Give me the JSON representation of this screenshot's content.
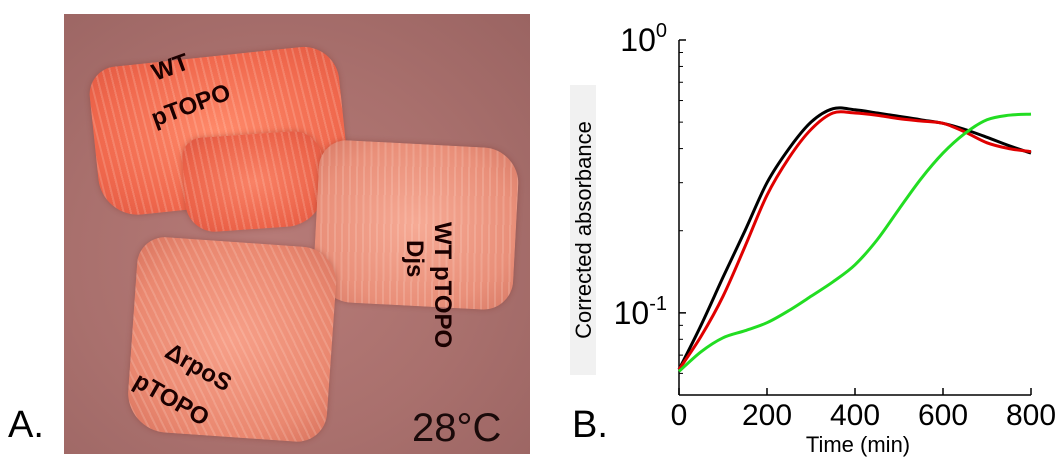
{
  "panel_labels": {
    "a": "A.",
    "b": "B."
  },
  "plate": {
    "labels": {
      "wt_line1": "WT",
      "wt_line2": "pTOPO",
      "djs_line1": "WT pTOPO",
      "djs_line2": "Djs",
      "rpos_line1": "ΔrpoS",
      "rpos_line2": "pTOPO"
    },
    "temperature": "28°C"
  },
  "chart_data": {
    "type": "line",
    "xlabel": "Time (min)",
    "ylabel": "Corrected absorbance",
    "xlim": [
      0,
      800
    ],
    "ylim": [
      0.05,
      1.0
    ],
    "yscale": "log",
    "xticks": [
      0,
      200,
      400,
      600,
      800
    ],
    "xtick_labels": [
      "0",
      "200",
      "400",
      "600",
      "800"
    ],
    "yticks": [
      0.1,
      1.0
    ],
    "ytick_base": "10",
    "ytick_exponents": [
      "-1",
      "0"
    ],
    "grid": false,
    "series": [
      {
        "color": "#000000",
        "x": [
          0,
          50,
          100,
          150,
          200,
          250,
          300,
          350,
          400,
          450,
          500,
          550,
          600,
          650,
          700,
          750,
          800
        ],
        "y": [
          0.062,
          0.09,
          0.135,
          0.2,
          0.3,
          0.4,
          0.5,
          0.56,
          0.555,
          0.54,
          0.525,
          0.51,
          0.495,
          0.47,
          0.44,
          0.41,
          0.385
        ]
      },
      {
        "color": "#e00000",
        "x": [
          0,
          50,
          100,
          150,
          200,
          250,
          300,
          350,
          400,
          450,
          500,
          550,
          600,
          650,
          700,
          750,
          800
        ],
        "y": [
          0.062,
          0.082,
          0.115,
          0.175,
          0.27,
          0.37,
          0.47,
          0.54,
          0.54,
          0.53,
          0.515,
          0.505,
          0.495,
          0.46,
          0.42,
          0.4,
          0.39
        ]
      },
      {
        "color": "#22dd22",
        "x": [
          0,
          50,
          100,
          150,
          200,
          250,
          300,
          350,
          400,
          450,
          500,
          550,
          600,
          650,
          700,
          750,
          800
        ],
        "y": [
          0.061,
          0.072,
          0.081,
          0.086,
          0.092,
          0.102,
          0.115,
          0.13,
          0.15,
          0.185,
          0.24,
          0.31,
          0.385,
          0.455,
          0.51,
          0.53,
          0.535
        ]
      }
    ]
  }
}
